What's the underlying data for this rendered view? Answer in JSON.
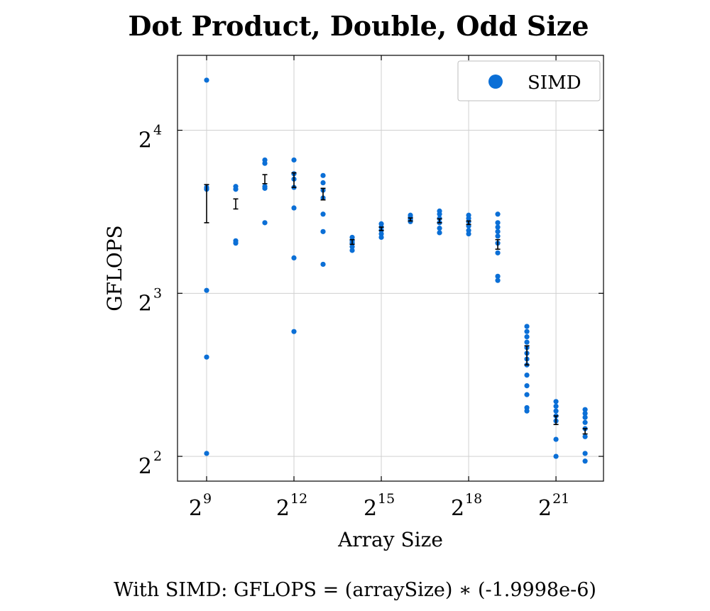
{
  "chart_data": {
    "type": "scatter",
    "title": "Dot Product, Double, Odd Size",
    "xlabel": "Array Size",
    "ylabel": "GFLOPS",
    "x_scale": "log2",
    "y_scale": "log2",
    "xlim": [
      256,
      6500000
    ],
    "ylim": [
      3.6,
      22
    ],
    "x_ticks": [
      {
        "base": "2",
        "exp": "9",
        "value": 512
      },
      {
        "base": "2",
        "exp": "12",
        "value": 4096
      },
      {
        "base": "2",
        "exp": "15",
        "value": 32768
      },
      {
        "base": "2",
        "exp": "18",
        "value": 262144
      },
      {
        "base": "2",
        "exp": "21",
        "value": 2097152
      }
    ],
    "y_ticks": [
      {
        "base": "2",
        "exp": "2",
        "value": 4
      },
      {
        "base": "2",
        "exp": "3",
        "value": 8
      },
      {
        "base": "2",
        "exp": "4",
        "value": 16
      }
    ],
    "grid": true,
    "legend_position": "top-right",
    "series": [
      {
        "name": "SIMD",
        "color": "#0b6fd6",
        "points": [
          {
            "x": 512,
            "y": 19.8
          },
          {
            "x": 512,
            "y": 12.55
          },
          {
            "x": 512,
            "y": 12.45
          },
          {
            "x": 512,
            "y": 8.1
          },
          {
            "x": 512,
            "y": 6.1
          },
          {
            "x": 512,
            "y": 4.05
          },
          {
            "x": 1024,
            "y": 12.6
          },
          {
            "x": 1024,
            "y": 12.45
          },
          {
            "x": 1024,
            "y": 10.0
          },
          {
            "x": 1024,
            "y": 9.9
          },
          {
            "x": 2048,
            "y": 14.1
          },
          {
            "x": 2048,
            "y": 13.9
          },
          {
            "x": 2048,
            "y": 12.6
          },
          {
            "x": 2048,
            "y": 12.5
          },
          {
            "x": 2048,
            "y": 10.8
          },
          {
            "x": 4096,
            "y": 14.1
          },
          {
            "x": 4096,
            "y": 13.3
          },
          {
            "x": 4096,
            "y": 13.0
          },
          {
            "x": 4096,
            "y": 12.55
          },
          {
            "x": 4096,
            "y": 11.5
          },
          {
            "x": 4096,
            "y": 9.3
          },
          {
            "x": 4096,
            "y": 6.8
          },
          {
            "x": 8192,
            "y": 13.2
          },
          {
            "x": 8192,
            "y": 12.8
          },
          {
            "x": 8192,
            "y": 12.4
          },
          {
            "x": 8192,
            "y": 12.0
          },
          {
            "x": 8192,
            "y": 11.2
          },
          {
            "x": 8192,
            "y": 10.4
          },
          {
            "x": 8192,
            "y": 9.05
          },
          {
            "x": 16384,
            "y": 10.15
          },
          {
            "x": 16384,
            "y": 10.0
          },
          {
            "x": 16384,
            "y": 9.9
          },
          {
            "x": 16384,
            "y": 9.75
          },
          {
            "x": 16384,
            "y": 9.6
          },
          {
            "x": 32768,
            "y": 10.75
          },
          {
            "x": 32768,
            "y": 10.6
          },
          {
            "x": 32768,
            "y": 10.45
          },
          {
            "x": 32768,
            "y": 10.3
          },
          {
            "x": 32768,
            "y": 10.15
          },
          {
            "x": 65536,
            "y": 11.15
          },
          {
            "x": 65536,
            "y": 11.05
          },
          {
            "x": 65536,
            "y": 10.95
          },
          {
            "x": 65536,
            "y": 10.85
          },
          {
            "x": 131072,
            "y": 11.35
          },
          {
            "x": 131072,
            "y": 11.2
          },
          {
            "x": 131072,
            "y": 11.0
          },
          {
            "x": 131072,
            "y": 10.8
          },
          {
            "x": 131072,
            "y": 10.55
          },
          {
            "x": 131072,
            "y": 10.35
          },
          {
            "x": 262144,
            "y": 11.15
          },
          {
            "x": 262144,
            "y": 11.0
          },
          {
            "x": 262144,
            "y": 10.85
          },
          {
            "x": 262144,
            "y": 10.65
          },
          {
            "x": 262144,
            "y": 10.45
          },
          {
            "x": 262144,
            "y": 10.3
          },
          {
            "x": 524288,
            "y": 11.2
          },
          {
            "x": 524288,
            "y": 10.8
          },
          {
            "x": 524288,
            "y": 10.6
          },
          {
            "x": 524288,
            "y": 10.4
          },
          {
            "x": 524288,
            "y": 10.2
          },
          {
            "x": 524288,
            "y": 9.9
          },
          {
            "x": 524288,
            "y": 9.5
          },
          {
            "x": 524288,
            "y": 8.6
          },
          {
            "x": 524288,
            "y": 8.45
          },
          {
            "x": 1048576,
            "y": 6.95
          },
          {
            "x": 1048576,
            "y": 6.8
          },
          {
            "x": 1048576,
            "y": 6.65
          },
          {
            "x": 1048576,
            "y": 6.5
          },
          {
            "x": 1048576,
            "y": 6.35
          },
          {
            "x": 1048576,
            "y": 6.2
          },
          {
            "x": 1048576,
            "y": 6.05
          },
          {
            "x": 1048576,
            "y": 5.9
          },
          {
            "x": 1048576,
            "y": 5.65
          },
          {
            "x": 1048576,
            "y": 5.4
          },
          {
            "x": 1048576,
            "y": 5.2
          },
          {
            "x": 1048576,
            "y": 4.92
          },
          {
            "x": 1048576,
            "y": 4.85
          },
          {
            "x": 2097152,
            "y": 5.05
          },
          {
            "x": 2097152,
            "y": 4.95
          },
          {
            "x": 2097152,
            "y": 4.85
          },
          {
            "x": 2097152,
            "y": 4.75
          },
          {
            "x": 2097152,
            "y": 4.65
          },
          {
            "x": 2097152,
            "y": 4.3
          },
          {
            "x": 2097152,
            "y": 4.0
          },
          {
            "x": 4194304,
            "y": 4.88
          },
          {
            "x": 4194304,
            "y": 4.8
          },
          {
            "x": 4194304,
            "y": 4.72
          },
          {
            "x": 4194304,
            "y": 4.62
          },
          {
            "x": 4194304,
            "y": 4.5
          },
          {
            "x": 4194304,
            "y": 4.35
          },
          {
            "x": 4194304,
            "y": 4.05
          },
          {
            "x": 4194304,
            "y": 3.92
          }
        ]
      }
    ],
    "error_bars": [
      {
        "x": 512,
        "low": 10.8,
        "high": 12.7
      },
      {
        "x": 1024,
        "low": 11.45,
        "high": 11.95
      },
      {
        "x": 2048,
        "low": 12.75,
        "high": 13.25
      },
      {
        "x": 4096,
        "low": 12.55,
        "high": 13.35
      },
      {
        "x": 8192,
        "low": 11.9,
        "high": 12.5
      },
      {
        "x": 16384,
        "low": 9.85,
        "high": 10.05
      },
      {
        "x": 32768,
        "low": 10.45,
        "high": 10.6
      },
      {
        "x": 65536,
        "low": 10.88,
        "high": 11.02
      },
      {
        "x": 131072,
        "low": 10.8,
        "high": 10.98
      },
      {
        "x": 262144,
        "low": 10.72,
        "high": 10.88
      },
      {
        "x": 524288,
        "low": 9.65,
        "high": 10.05
      },
      {
        "x": 1048576,
        "low": 5.9,
        "high": 6.4
      },
      {
        "x": 2097152,
        "low": 4.58,
        "high": 4.75
      },
      {
        "x": 4194304,
        "low": 4.4,
        "high": 4.5
      }
    ],
    "footer_formula": "With SIMD:  GFLOPS = (arraySize) ∗ (-1.9998e-6)"
  }
}
